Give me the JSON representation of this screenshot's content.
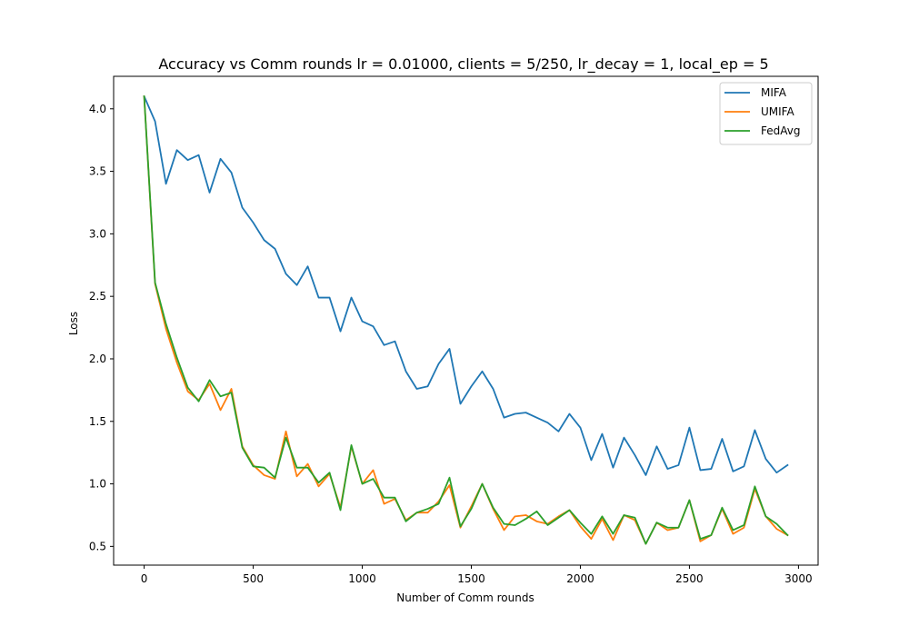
{
  "chart_data": {
    "type": "line",
    "title": "Accuracy vs Comm rounds lr = 0.01000, clients = 5/250, lr_decay = 1, local_ep = 5",
    "xlabel": "Number of Comm rounds",
    "ylabel": "Loss",
    "xlim": [
      -140,
      3090
    ],
    "ylim": [
      0.35,
      4.26
    ],
    "xticks": [
      0,
      500,
      1000,
      1500,
      2000,
      2500,
      3000
    ],
    "yticks": [
      0.5,
      1.0,
      1.5,
      2.0,
      2.5,
      3.0,
      3.5,
      4.0
    ],
    "xtick_labels": [
      "0",
      "500",
      "1000",
      "1500",
      "2000",
      "2500",
      "3000"
    ],
    "ytick_labels": [
      "0.5",
      "1.0",
      "1.5",
      "2.0",
      "2.5",
      "3.0",
      "3.5",
      "4.0"
    ],
    "grid": false,
    "legend_position": "top-right",
    "x": [
      0,
      50,
      100,
      150,
      200,
      250,
      300,
      350,
      400,
      450,
      500,
      550,
      600,
      650,
      700,
      750,
      800,
      850,
      900,
      950,
      1000,
      1050,
      1100,
      1150,
      1200,
      1250,
      1300,
      1350,
      1400,
      1450,
      1500,
      1550,
      1600,
      1650,
      1700,
      1750,
      1800,
      1850,
      1900,
      1950,
      2000,
      2050,
      2100,
      2150,
      2200,
      2250,
      2300,
      2350,
      2400,
      2450,
      2500,
      2550,
      2600,
      2650,
      2700,
      2750,
      2800,
      2850,
      2900,
      2950
    ],
    "series": [
      {
        "name": "MIFA",
        "color": "#1f77b4",
        "values": [
          4.1,
          3.9,
          3.4,
          3.67,
          3.59,
          3.63,
          3.33,
          3.6,
          3.49,
          3.21,
          3.09,
          2.95,
          2.88,
          2.68,
          2.59,
          2.74,
          2.49,
          2.49,
          2.22,
          2.49,
          2.3,
          2.26,
          2.11,
          2.14,
          1.9,
          1.76,
          1.78,
          1.96,
          2.08,
          1.64,
          1.78,
          1.9,
          1.76,
          1.53,
          1.56,
          1.57,
          1.53,
          1.49,
          1.42,
          1.56,
          1.45,
          1.19,
          1.4,
          1.13,
          1.37,
          1.23,
          1.07,
          1.3,
          1.12,
          1.15,
          1.45,
          1.11,
          1.12,
          1.36,
          1.1,
          1.14,
          1.43,
          1.2,
          1.09,
          1.15
        ]
      },
      {
        "name": "UMIFA",
        "color": "#ff7f0e",
        "values": [
          4.1,
          2.6,
          2.24,
          1.97,
          1.74,
          1.67,
          1.8,
          1.59,
          1.76,
          1.3,
          1.15,
          1.07,
          1.04,
          1.42,
          1.06,
          1.16,
          0.98,
          1.08,
          0.81,
          1.3,
          1.0,
          1.11,
          0.84,
          0.88,
          0.71,
          0.77,
          0.77,
          0.86,
          0.99,
          0.65,
          0.82,
          1.0,
          0.8,
          0.63,
          0.74,
          0.75,
          0.7,
          0.68,
          0.74,
          0.79,
          0.66,
          0.56,
          0.72,
          0.55,
          0.75,
          0.71,
          0.52,
          0.69,
          0.63,
          0.65,
          0.87,
          0.54,
          0.59,
          0.8,
          0.6,
          0.65,
          0.96,
          0.74,
          0.64,
          0.59
        ]
      },
      {
        "name": "FedAvg",
        "color": "#2ca02c",
        "values": [
          4.1,
          2.61,
          2.28,
          2.01,
          1.77,
          1.66,
          1.83,
          1.7,
          1.73,
          1.29,
          1.14,
          1.13,
          1.05,
          1.37,
          1.13,
          1.13,
          1.01,
          1.09,
          0.79,
          1.31,
          1.0,
          1.04,
          0.89,
          0.89,
          0.7,
          0.77,
          0.8,
          0.84,
          1.05,
          0.66,
          0.8,
          1.0,
          0.81,
          0.68,
          0.67,
          0.72,
          0.78,
          0.67,
          0.73,
          0.79,
          0.69,
          0.6,
          0.74,
          0.6,
          0.75,
          0.73,
          0.52,
          0.69,
          0.65,
          0.65,
          0.87,
          0.56,
          0.59,
          0.81,
          0.63,
          0.67,
          0.98,
          0.74,
          0.68,
          0.59
        ]
      }
    ]
  }
}
